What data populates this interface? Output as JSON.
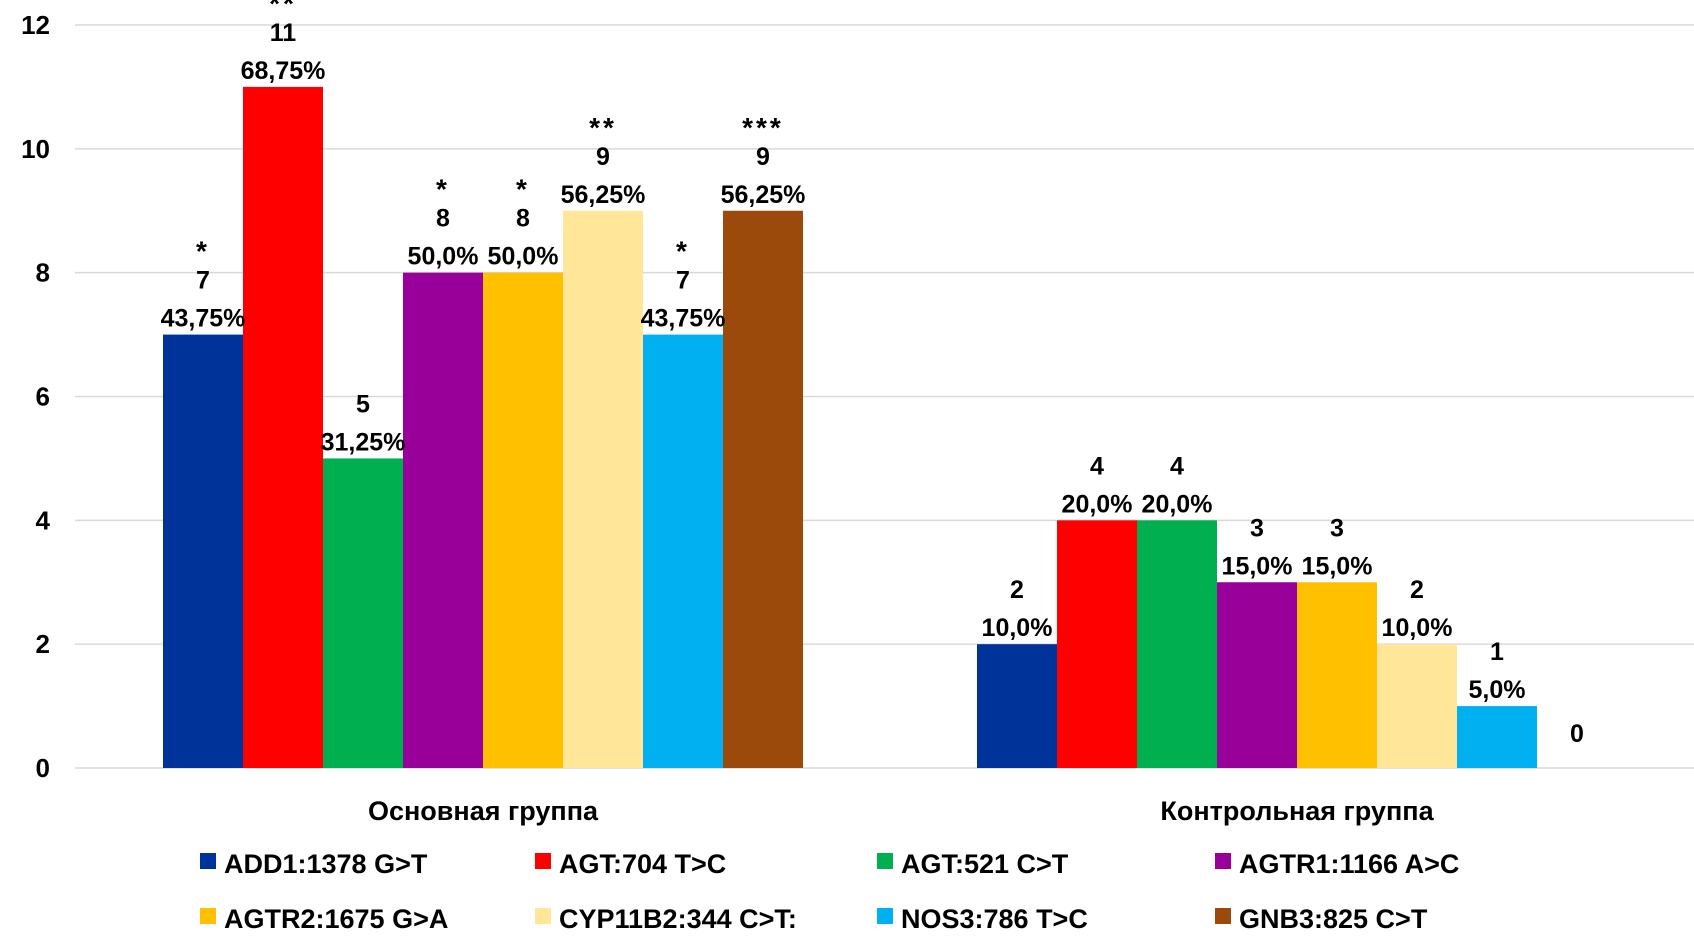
{
  "chart_data": {
    "type": "bar",
    "title": "",
    "xlabel": "",
    "ylabel": "",
    "ylim": [
      0,
      12
    ],
    "yticks": [
      0,
      2,
      4,
      6,
      8,
      10,
      12
    ],
    "grid": true,
    "legend_position": "bottom",
    "categories": [
      "Основная группа",
      "Контрольная группа"
    ],
    "series": [
      {
        "name": "ADD1:1378 G>T",
        "color": "#003399",
        "values": [
          7,
          2
        ],
        "labels": [
          [
            "7",
            "43,75%"
          ],
          [
            "2",
            "10,0%"
          ]
        ],
        "sig": [
          "*",
          ""
        ]
      },
      {
        "name": "AGT:704 T>C",
        "color": "#ff0000",
        "values": [
          11,
          4
        ],
        "labels": [
          [
            "11",
            "68,75%"
          ],
          [
            "4",
            "20,0%"
          ]
        ],
        "sig": [
          "**",
          ""
        ]
      },
      {
        "name": "AGT:521 C>T",
        "color": "#00b050",
        "values": [
          5,
          4
        ],
        "labels": [
          [
            "5",
            "31,25%"
          ],
          [
            "4",
            "20,0%"
          ]
        ],
        "sig": [
          "",
          ""
        ]
      },
      {
        "name": "AGTR1:1166 A>C",
        "color": "#990099",
        "values": [
          8,
          3
        ],
        "labels": [
          [
            "8",
            "50,0%"
          ],
          [
            "3",
            "15,0%"
          ]
        ],
        "sig": [
          "*",
          ""
        ]
      },
      {
        "name": "AGTR2:1675 G>A",
        "color": "#ffc000",
        "values": [
          8,
          3
        ],
        "labels": [
          [
            "8",
            "50,0%"
          ],
          [
            "3",
            "15,0%"
          ]
        ],
        "sig": [
          "*",
          ""
        ]
      },
      {
        "name": "CYP11B2:344 C>T:",
        "color": "#ffe699",
        "values": [
          9,
          2
        ],
        "labels": [
          [
            "9",
            "56,25%"
          ],
          [
            "2",
            "10,0%"
          ]
        ],
        "sig": [
          "**",
          ""
        ]
      },
      {
        "name": "NOS3:786 T>C",
        "color": "#00b0f0",
        "values": [
          7,
          1
        ],
        "labels": [
          [
            "7",
            "43,75%"
          ],
          [
            "1",
            "5,0%"
          ]
        ],
        "sig": [
          "*",
          ""
        ]
      },
      {
        "name": "GNB3:825 C>T",
        "color": "#9c4a0c",
        "values": [
          9,
          0
        ],
        "labels": [
          [
            "9",
            "56,25%"
          ],
          [
            "0"
          ]
        ],
        "sig": [
          "***",
          ""
        ]
      }
    ]
  }
}
